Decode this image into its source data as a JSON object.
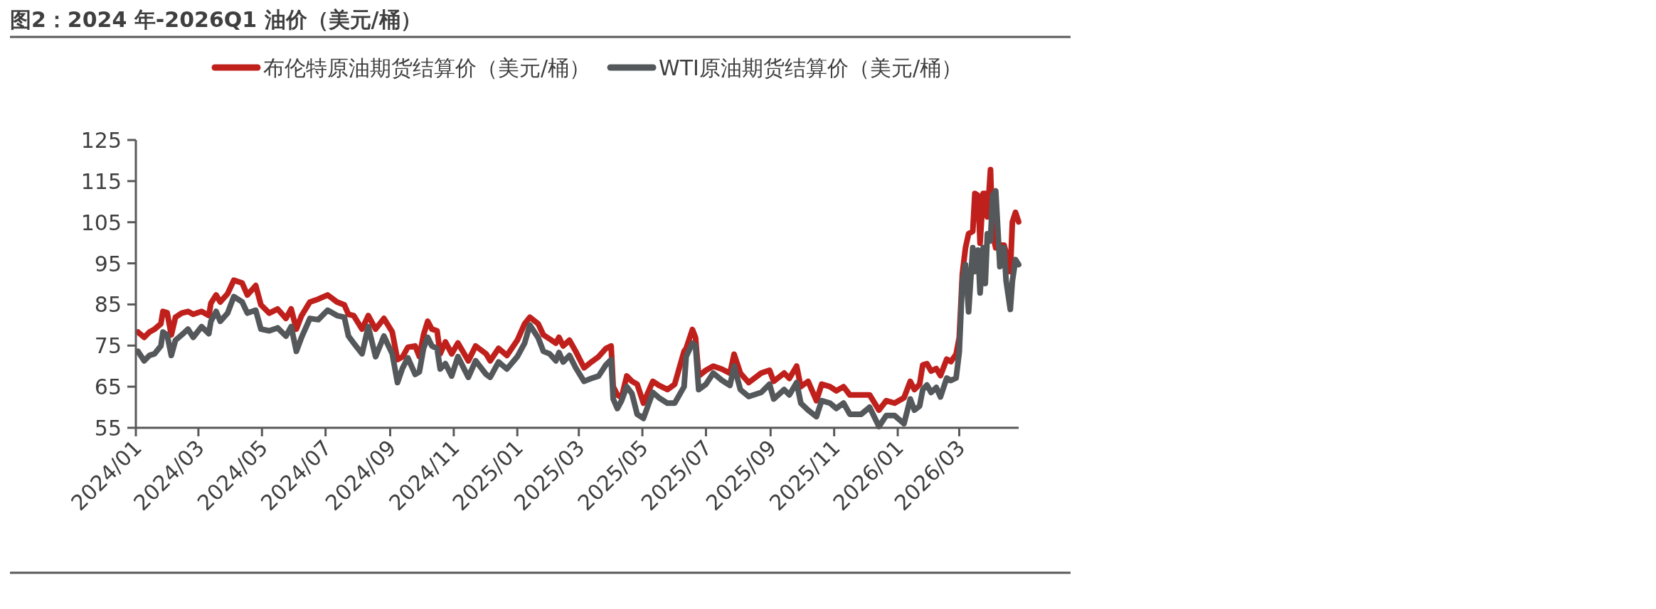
{
  "chart_data": {
    "type": "line",
    "title": "图2：2024 年-2026Q1 油价（美元/桶）",
    "x": [
      "2024-01-03",
      "2024-01-09",
      "2024-01-14",
      "2024-01-19",
      "2024-01-25",
      "2024-01-27",
      "2024-01-31",
      "2024-02-04",
      "2024-02-08",
      "2024-02-14",
      "2024-02-20",
      "2024-02-25",
      "2024-03-04",
      "2024-03-11",
      "2024-03-13",
      "2024-03-18",
      "2024-03-22",
      "2024-03-29",
      "2024-04-04",
      "2024-04-12",
      "2024-04-17",
      "2024-04-25",
      "2024-04-30",
      "2024-05-08",
      "2024-05-16",
      "2024-05-24",
      "2024-05-29",
      "2024-06-03",
      "2024-06-08",
      "2024-06-16",
      "2024-06-24",
      "2024-07-03",
      "2024-07-12",
      "2024-07-19",
      "2024-07-23",
      "2024-07-28",
      "2024-08-05",
      "2024-08-11",
      "2024-08-18",
      "2024-08-26",
      "2024-09-03",
      "2024-09-08",
      "2024-09-13",
      "2024-09-18",
      "2024-09-25",
      "2024-09-29",
      "2024-10-03",
      "2024-10-07",
      "2024-10-11",
      "2024-10-16",
      "2024-10-19",
      "2024-10-24",
      "2024-10-30",
      "2024-11-05",
      "2024-11-15",
      "2024-11-22",
      "2024-12-02",
      "2024-12-06",
      "2024-12-14",
      "2024-12-22",
      "2025-01-01",
      "2025-01-08",
      "2025-01-13",
      "2025-01-21",
      "2025-01-26",
      "2025-02-01",
      "2025-02-07",
      "2025-02-10",
      "2025-02-14",
      "2025-02-20",
      "2025-02-26",
      "2025-03-06",
      "2025-03-13",
      "2025-03-20",
      "2025-03-27",
      "2025-04-01",
      "2025-04-03",
      "2025-04-07",
      "2025-04-11",
      "2025-04-16",
      "2025-04-21",
      "2025-04-26",
      "2025-05-02",
      "2025-05-11",
      "2025-05-17",
      "2025-05-25",
      "2025-06-01",
      "2025-06-10",
      "2025-06-12",
      "2025-06-18",
      "2025-06-21",
      "2025-06-24",
      "2025-07-01",
      "2025-07-08",
      "2025-07-16",
      "2025-07-24",
      "2025-07-28",
      "2025-08-03",
      "2025-08-11",
      "2025-08-23",
      "2025-08-31",
      "2025-09-04",
      "2025-09-14",
      "2025-09-19",
      "2025-09-26",
      "2025-09-30",
      "2025-10-07",
      "2025-10-15",
      "2025-10-20",
      "2025-10-28",
      "2025-11-03",
      "2025-11-10",
      "2025-11-16",
      "2025-11-27",
      "2025-12-05",
      "2025-12-14",
      "2025-12-21",
      "2025-12-29",
      "2026-01-07",
      "2026-01-13",
      "2026-01-17",
      "2026-01-22",
      "2026-01-25",
      "2026-01-29",
      "2026-02-02",
      "2026-02-07",
      "2026-02-11",
      "2026-02-17",
      "2026-02-21",
      "2026-02-26",
      "2026-03-01",
      "2026-03-04",
      "2026-03-07",
      "2026-03-10",
      "2026-03-14",
      "2026-03-16",
      "2026-03-19",
      "2026-03-21",
      "2026-03-24",
      "2026-03-26",
      "2026-03-28",
      "2026-03-31",
      "2026-04-02",
      "2026-04-05",
      "2026-04-09",
      "2026-04-13",
      "2026-04-15",
      "2026-04-19",
      "2026-04-21",
      "2026-04-24",
      "2026-04-27"
    ],
    "series": [
      {
        "name": "布伦特原油期货结算价（美元/桶）",
        "color": "#c0201c",
        "values": [
          78.3,
          77,
          78.3,
          79,
          80.3,
          83.3,
          83,
          77.6,
          81.9,
          82.9,
          83.3,
          82.6,
          83.3,
          82.3,
          85.3,
          87.3,
          85.6,
          87.6,
          90.9,
          90.2,
          87.3,
          89.6,
          84.9,
          82.9,
          83.9,
          81.6,
          83.9,
          79,
          82.3,
          85.6,
          86.3,
          87.3,
          85.6,
          84.9,
          82.6,
          82.3,
          79,
          82.3,
          79,
          81.6,
          78.3,
          71.6,
          72.3,
          74.6,
          74.9,
          72.3,
          77.6,
          80.9,
          79,
          78.6,
          73,
          75.9,
          73,
          75.6,
          71.3,
          74.9,
          73,
          71.3,
          74.3,
          72.6,
          76.3,
          80.3,
          81.9,
          80.3,
          77.6,
          76.6,
          75.6,
          77,
          74.9,
          76.3,
          73.6,
          69.6,
          71,
          72.3,
          74.3,
          74.9,
          65,
          63,
          62.4,
          67.6,
          66.3,
          65.6,
          61,
          66.3,
          65.3,
          64.3,
          65.6,
          73.6,
          74.3,
          78.9,
          76.9,
          67.6,
          69,
          70,
          69.3,
          68.3,
          72.9,
          68.3,
          66,
          68.3,
          69,
          66.3,
          68.3,
          67,
          70,
          65,
          66.3,
          61.6,
          65.6,
          65,
          64,
          65,
          63,
          63,
          63,
          59.3,
          61.6,
          61,
          62.3,
          66.3,
          64.3,
          65.6,
          70.3,
          70.6,
          68.8,
          69.4,
          67.7,
          71.7,
          71.1,
          72.9,
          76.9,
          92.4,
          98.8,
          102.2,
          102.8,
          112,
          111.5,
          99.9,
          112,
          112,
          106.3,
          117.8,
          102.2,
          98.8,
          99.4,
          99.4,
          97.6,
          93,
          105.1,
          107.4,
          105.1
        ]
      },
      {
        "name": "WTI原油期货结算价（美元/桶）",
        "color": "#54585b",
        "values": [
          73.6,
          71.3,
          72.6,
          73,
          74.9,
          78.3,
          77.6,
          72.6,
          76.3,
          77.6,
          79,
          77,
          79.6,
          77.9,
          80.9,
          83.3,
          80.9,
          82.9,
          86.9,
          85.6,
          82.9,
          83.6,
          79,
          78.6,
          79.3,
          77.3,
          79.6,
          73.6,
          77,
          81.6,
          81.3,
          83.6,
          82.3,
          81.9,
          77.3,
          75.6,
          73,
          79.6,
          72.3,
          77.3,
          73,
          66,
          69.6,
          72,
          68,
          68.6,
          74.3,
          77,
          74.9,
          74.3,
          69.3,
          70.6,
          67.6,
          72.3,
          67.3,
          71.3,
          68,
          67.3,
          71,
          69.3,
          72.3,
          75.6,
          80,
          76.9,
          73.6,
          73,
          71.3,
          73.3,
          71,
          72.6,
          69.6,
          66.3,
          67,
          67.6,
          70.3,
          71.6,
          62,
          59.7,
          61.6,
          65,
          63.3,
          58.3,
          57.3,
          63.6,
          62.3,
          61,
          61,
          65,
          72.3,
          75.6,
          74.9,
          64.3,
          65.6,
          68.3,
          66.6,
          65.3,
          70,
          64.3,
          62.6,
          63.6,
          65.6,
          62,
          64.3,
          63,
          66,
          61,
          59.3,
          57.7,
          61.6,
          61,
          59.7,
          61,
          58.3,
          58.3,
          60,
          55.3,
          58,
          58,
          56,
          62,
          59.3,
          60.3,
          64.3,
          65.4,
          63.6,
          64.8,
          62.5,
          67.1,
          66.5,
          67.1,
          73.4,
          90.7,
          94.7,
          83.2,
          98.8,
          93,
          98.2,
          87.8,
          98.8,
          90.1,
          102.2,
          100.5,
          111.5,
          112.6,
          94.2,
          98.8,
          90.7,
          83.8,
          90.7,
          95.9,
          94.7
        ]
      }
    ],
    "xlim": [
      "2024-01-01",
      "2026-04-27"
    ],
    "xticks": [
      {
        "value": "2024-01-01",
        "label": "2024/01"
      },
      {
        "value": "2024-03-01",
        "label": "2024/03"
      },
      {
        "value": "2024-05-01",
        "label": "2024/05"
      },
      {
        "value": "2024-07-01",
        "label": "2024/07"
      },
      {
        "value": "2024-09-01",
        "label": "2024/09"
      },
      {
        "value": "2024-11-01",
        "label": "2024/11"
      },
      {
        "value": "2025-01-01",
        "label": "2025/01"
      },
      {
        "value": "2025-03-01",
        "label": "2025/03"
      },
      {
        "value": "2025-05-01",
        "label": "2025/05"
      },
      {
        "value": "2025-07-01",
        "label": "2025/07"
      },
      {
        "value": "2025-09-01",
        "label": "2025/09"
      },
      {
        "value": "2025-11-01",
        "label": "2025/11"
      },
      {
        "value": "2026-01-01",
        "label": "2026/01"
      },
      {
        "value": "2026-03-01",
        "label": "2026/03"
      }
    ],
    "ylim": [
      55,
      125
    ],
    "yticks": [
      55,
      65,
      75,
      85,
      95,
      105,
      115,
      125
    ],
    "legend": "top"
  }
}
